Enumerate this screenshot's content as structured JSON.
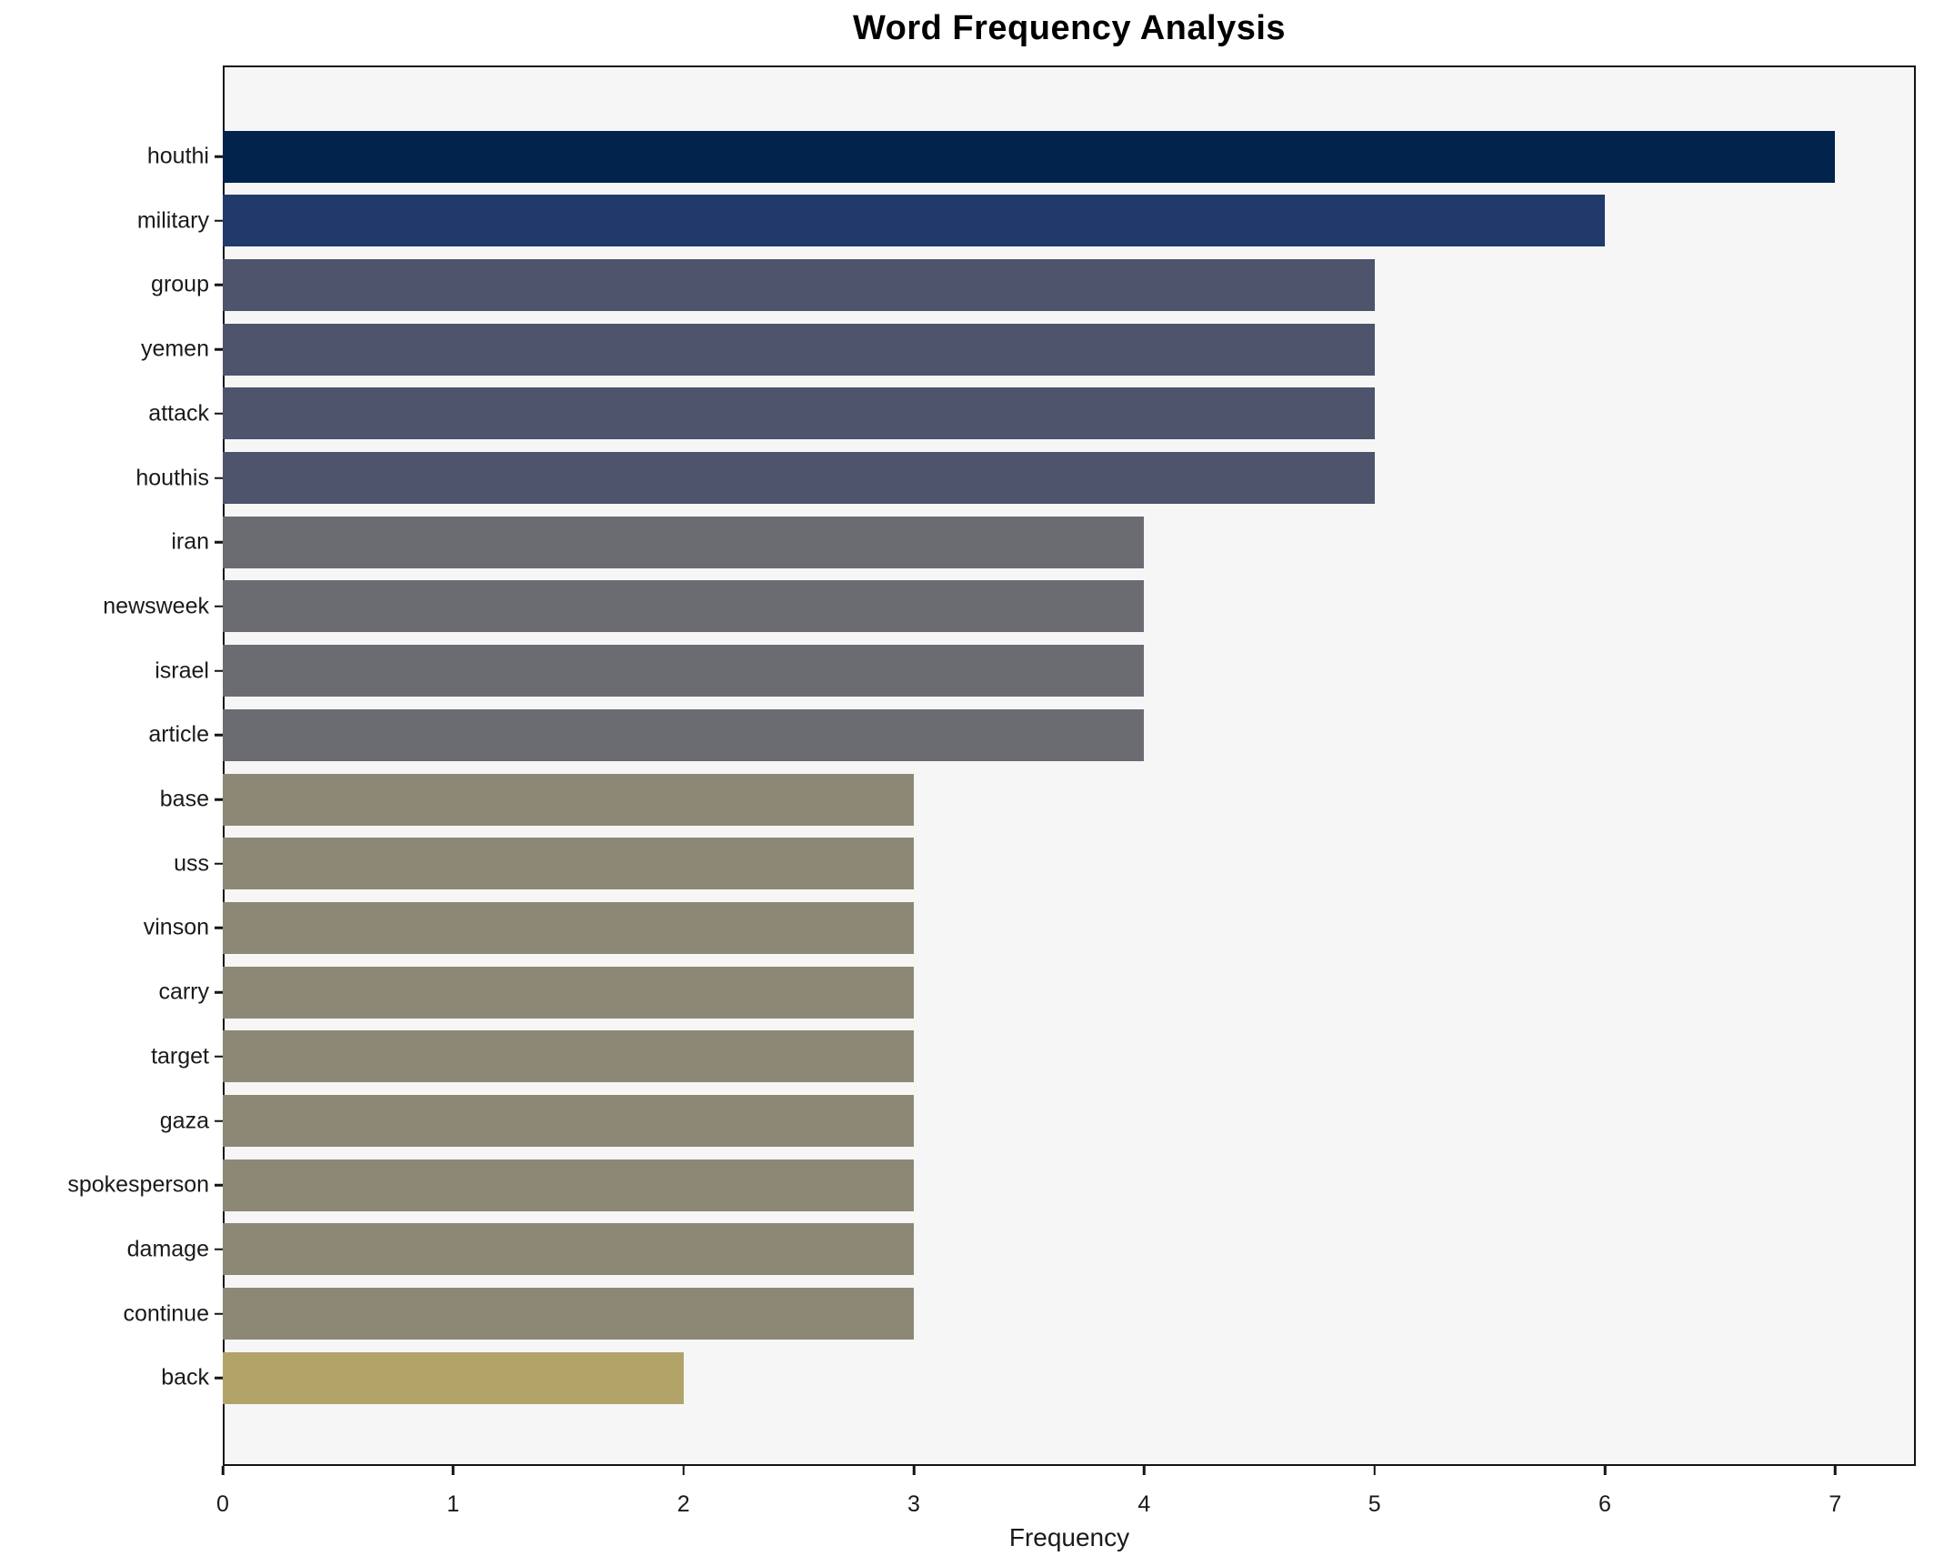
{
  "chart_data": {
    "type": "bar",
    "orientation": "horizontal",
    "title": "Word Frequency Analysis",
    "xlabel": "Frequency",
    "ylabel": "",
    "categories": [
      "houthi",
      "military",
      "group",
      "yemen",
      "attack",
      "houthis",
      "iran",
      "newsweek",
      "israel",
      "article",
      "base",
      "uss",
      "vinson",
      "carry",
      "target",
      "gaza",
      "spokesperson",
      "damage",
      "continue",
      "back"
    ],
    "values": [
      7,
      6,
      5,
      5,
      5,
      5,
      4,
      4,
      4,
      4,
      3,
      3,
      3,
      3,
      3,
      3,
      3,
      3,
      3,
      2
    ],
    "bar_colors": [
      "#01234c",
      "#223a6b",
      "#4d546c",
      "#4d546c",
      "#4d546c",
      "#4d546c",
      "#6b6c71",
      "#6b6c71",
      "#6b6c71",
      "#6b6c71",
      "#8d8775",
      "#8d8775",
      "#8d8775",
      "#8d8775",
      "#8d8775",
      "#8d8775",
      "#8d8775",
      "#8d8775",
      "#8d8775",
      "#b2a369"
    ],
    "x_ticks": [
      "0",
      "1",
      "2",
      "3",
      "4",
      "5",
      "6",
      "7"
    ],
    "xlim": [
      0,
      7.35
    ],
    "grid": false,
    "legend": "none",
    "plot_background": "#f6f6f7",
    "figure_background": "#ffffff",
    "spine_color": "#141414"
  }
}
